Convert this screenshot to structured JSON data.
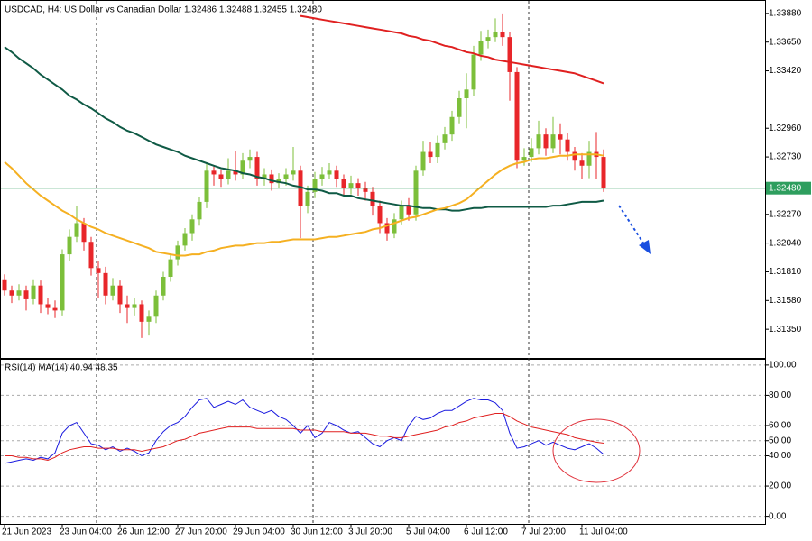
{
  "chart_data": [
    {
      "type": "candlestick",
      "title": "USDCAD, H4:  US Dollar vs Canadian Dollar  1.32486 1.32488 1.32455 1.32480",
      "categories": [
        "21 Jun 2023",
        null,
        null,
        null,
        null,
        null,
        null,
        null,
        "23 Jun 04:00",
        null,
        null,
        null,
        null,
        null,
        null,
        null,
        "26 Jun 12:00",
        null,
        null,
        null,
        null,
        null,
        null,
        null,
        "27 Jun 20:00",
        null,
        null,
        null,
        null,
        null,
        null,
        null,
        "29 Jun 04:00",
        null,
        null,
        null,
        null,
        null,
        null,
        null,
        "30 Jun 12:00",
        null,
        null,
        null,
        null,
        null,
        null,
        null,
        "3 Jul 20:00",
        null,
        null,
        null,
        null,
        null,
        null,
        null,
        "5 Jul 04:00",
        null,
        null,
        null,
        null,
        null,
        null,
        null,
        "6 Jul 12:00",
        null,
        null,
        null,
        null,
        null,
        null,
        null,
        "7 Jul 20:00",
        null,
        null,
        null,
        null,
        null,
        null,
        null,
        "11 Jul 04:00",
        null,
        null,
        null
      ],
      "open": [
        1.3175,
        1.3166,
        1.3162,
        1.3166,
        1.3159,
        1.317,
        1.3155,
        1.3152,
        1.315,
        1.3195,
        1.3209,
        1.322,
        1.3205,
        1.3184,
        1.318,
        1.3162,
        1.317,
        1.3155,
        1.3152,
        1.3155,
        1.3141,
        1.3145,
        1.3162,
        1.3177,
        1.3191,
        1.3202,
        1.3212,
        1.3223,
        1.3237,
        1.3262,
        1.3259,
        1.3255,
        1.3262,
        1.3259,
        1.327,
        1.3273,
        1.3255,
        1.3259,
        1.3252,
        1.3255,
        1.3259,
        1.3262,
        1.3234,
        1.3245,
        1.3255,
        1.3259,
        1.3262,
        1.3255,
        1.3248,
        1.3252,
        1.3248,
        1.3245,
        1.3234,
        1.322,
        1.3212,
        1.3223,
        1.3234,
        1.3227,
        1.3262,
        1.3277,
        1.3273,
        1.3284,
        1.3291,
        1.3305,
        1.332,
        1.3327,
        1.3355,
        1.3366,
        1.3369,
        1.3373,
        1.3369,
        1.3341,
        1.327,
        1.3273,
        1.328,
        1.3291,
        1.328,
        1.3291,
        1.3287,
        1.3277,
        1.327,
        1.3266,
        1.3277,
        1.3273
      ],
      "high": [
        1.3179,
        1.317,
        1.3171,
        1.317,
        1.3175,
        1.3174,
        1.316,
        1.3158,
        1.3199,
        1.3215,
        1.3234,
        1.3224,
        1.3209,
        1.319,
        1.3185,
        1.3176,
        1.3174,
        1.3162,
        1.316,
        1.3158,
        1.315,
        1.3166,
        1.3181,
        1.3195,
        1.3206,
        1.3216,
        1.3227,
        1.3241,
        1.3268,
        1.3266,
        1.3263,
        1.3272,
        1.3278,
        1.3276,
        1.3279,
        1.3277,
        1.3264,
        1.3263,
        1.326,
        1.3264,
        1.3281,
        1.3266,
        1.325,
        1.3261,
        1.3265,
        1.3268,
        1.3266,
        1.3259,
        1.3258,
        1.3256,
        1.3253,
        1.3249,
        1.3238,
        1.3224,
        1.3228,
        1.3238,
        1.324,
        1.3266,
        1.3286,
        1.3285,
        1.329,
        1.3297,
        1.331,
        1.3326,
        1.334,
        1.3362,
        1.3374,
        1.3375,
        1.3384,
        1.3388,
        1.3373,
        1.3345,
        1.328,
        1.3288,
        1.3302,
        1.3296,
        1.3305,
        1.33,
        1.3292,
        1.3281,
        1.3276,
        1.3286,
        1.3293,
        1.3279
      ],
      "low": [
        1.3162,
        1.3156,
        1.3158,
        1.315,
        1.3155,
        1.3148,
        1.3147,
        1.3144,
        1.3146,
        1.319,
        1.3205,
        1.3198,
        1.3178,
        1.316,
        1.3155,
        1.3158,
        1.3148,
        1.314,
        1.3146,
        1.3128,
        1.313,
        1.314,
        1.3158,
        1.3173,
        1.3186,
        1.3198,
        1.3206,
        1.3218,
        1.3232,
        1.325,
        1.3249,
        1.3251,
        1.3254,
        1.3255,
        1.3264,
        1.325,
        1.325,
        1.3246,
        1.3248,
        1.325,
        1.3254,
        1.3208,
        1.3228,
        1.324,
        1.325,
        1.3255,
        1.3249,
        1.3242,
        1.3243,
        1.3242,
        1.3238,
        1.3226,
        1.3212,
        1.3206,
        1.3208,
        1.3219,
        1.3222,
        1.3222,
        1.3258,
        1.3268,
        1.3268,
        1.3279,
        1.3286,
        1.33,
        1.3296,
        1.3322,
        1.335,
        1.336,
        1.3365,
        1.3362,
        1.3318,
        1.3264,
        1.3266,
        1.3269,
        1.3275,
        1.3274,
        1.3276,
        1.3275,
        1.327,
        1.3262,
        1.3255,
        1.3256,
        1.3255,
        1.3245
      ],
      "close": [
        1.3166,
        1.3162,
        1.3166,
        1.3159,
        1.317,
        1.3155,
        1.3152,
        1.315,
        1.3195,
        1.3209,
        1.322,
        1.3205,
        1.3184,
        1.318,
        1.3162,
        1.317,
        1.3155,
        1.3152,
        1.3155,
        1.3141,
        1.3145,
        1.3162,
        1.3177,
        1.3191,
        1.3202,
        1.3212,
        1.3223,
        1.3237,
        1.3262,
        1.3259,
        1.3255,
        1.3262,
        1.3259,
        1.327,
        1.3273,
        1.3255,
        1.3259,
        1.3252,
        1.3255,
        1.3259,
        1.3262,
        1.3234,
        1.3245,
        1.3255,
        1.3259,
        1.3262,
        1.3255,
        1.3248,
        1.3252,
        1.3248,
        1.3245,
        1.3234,
        1.322,
        1.3212,
        1.3223,
        1.3234,
        1.3227,
        1.3262,
        1.3277,
        1.3273,
        1.3284,
        1.3291,
        1.3305,
        1.332,
        1.3327,
        1.3355,
        1.3366,
        1.3369,
        1.3373,
        1.3369,
        1.3341,
        1.327,
        1.3273,
        1.328,
        1.3291,
        1.328,
        1.3291,
        1.3287,
        1.3277,
        1.327,
        1.3266,
        1.3277,
        1.3273,
        1.3248
      ],
      "up_color": "#7cbf3a",
      "down_color": "#e8262a",
      "overlays": [
        {
          "color": "#e02020",
          "values": [
            null,
            null,
            null,
            null,
            null,
            null,
            null,
            null,
            null,
            null,
            null,
            null,
            null,
            null,
            null,
            null,
            null,
            null,
            null,
            null,
            null,
            null,
            null,
            null,
            null,
            null,
            null,
            null,
            null,
            null,
            null,
            null,
            null,
            null,
            null,
            null,
            null,
            null,
            null,
            null,
            null,
            1.3386,
            1.3385,
            1.3384,
            1.3383,
            1.3382,
            1.3381,
            1.338,
            1.3379,
            1.3378,
            1.3377,
            1.3376,
            1.3375,
            1.3374,
            1.3373,
            1.3372,
            1.337,
            1.3369,
            1.3367,
            1.3366,
            1.3364,
            1.3362,
            1.3361,
            1.3359,
            1.3357,
            1.3356,
            1.3354,
            1.3353,
            1.3351,
            1.335,
            1.3349,
            1.3348,
            1.3347,
            1.3346,
            1.3345,
            1.3344,
            1.3343,
            1.3342,
            1.3341,
            1.334,
            1.3338,
            1.3336,
            1.3334,
            1.3332
          ]
        },
        {
          "color": "#0f5a45",
          "values": [
            1.3361,
            1.3357,
            1.3352,
            1.3348,
            1.3344,
            1.3339,
            1.3335,
            1.3331,
            1.3327,
            1.3322,
            1.3319,
            1.3315,
            1.3312,
            1.3308,
            1.3304,
            1.3301,
            1.3297,
            1.3294,
            1.3292,
            1.3289,
            1.3286,
            1.3283,
            1.3281,
            1.3279,
            1.3277,
            1.3274,
            1.3272,
            1.327,
            1.3268,
            1.3266,
            1.3264,
            1.3263,
            1.3262,
            1.326,
            1.3259,
            1.3257,
            1.3256,
            1.3254,
            1.3253,
            1.3252,
            1.325,
            1.3249,
            1.3247,
            1.3247,
            1.3246,
            1.3244,
            1.3244,
            1.3242,
            1.3242,
            1.324,
            1.3239,
            1.3238,
            1.3237,
            1.3236,
            1.3235,
            1.3234,
            1.3234,
            1.3233,
            1.3232,
            1.3232,
            1.3231,
            1.3231,
            1.323,
            1.323,
            1.3231,
            1.3232,
            1.3232,
            1.3233,
            1.3233,
            1.3233,
            1.3233,
            1.3233,
            1.3233,
            1.3233,
            1.3233,
            1.3233,
            1.3234,
            1.3234,
            1.3235,
            1.3236,
            1.3237,
            1.3237,
            1.3237,
            1.3238
          ]
        },
        {
          "color": "#f5b021",
          "values": [
            1.3269,
            1.3264,
            1.3258,
            1.3252,
            1.3247,
            1.3242,
            1.3238,
            1.3234,
            1.323,
            1.3227,
            1.3223,
            1.322,
            1.3217,
            1.3215,
            1.3212,
            1.321,
            1.3208,
            1.3206,
            1.3204,
            1.3202,
            1.32,
            1.3197,
            1.3196,
            1.3195,
            1.3194,
            1.3194,
            1.3195,
            1.3195,
            1.3197,
            1.3198,
            1.32,
            1.3201,
            1.3202,
            1.3202,
            1.3203,
            1.3204,
            1.3204,
            1.3205,
            1.3205,
            1.3206,
            1.3207,
            1.3207,
            1.3207,
            1.3207,
            1.3208,
            1.3209,
            1.3209,
            1.321,
            1.3211,
            1.3212,
            1.3213,
            1.3215,
            1.3216,
            1.3218,
            1.322,
            1.3222,
            1.3224,
            1.3225,
            1.3227,
            1.3229,
            1.3231,
            1.3232,
            1.3234,
            1.3236,
            1.3239,
            1.3244,
            1.3249,
            1.3254,
            1.3259,
            1.3263,
            1.3266,
            1.3268,
            1.3269,
            1.3271,
            1.3272,
            1.3272,
            1.3273,
            1.3274,
            1.3274,
            1.3275,
            1.3275,
            1.3275,
            1.3275,
            1.3274
          ]
        }
      ],
      "current_price": {
        "value": 1.3248,
        "label": "1.32480"
      },
      "ylim": [
        1.3112,
        1.3398
      ],
      "yticks": [
        {
          "value": 1.3388,
          "label": "1.33880"
        },
        {
          "value": 1.3365,
          "label": "1.33650"
        },
        {
          "value": 1.3342,
          "label": "1.33420"
        },
        {
          "value": 1.3296,
          "label": "1.32960"
        },
        {
          "value": 1.3273,
          "label": "1.32730"
        },
        {
          "value": 1.3227,
          "label": "1.32270"
        },
        {
          "value": 1.3204,
          "label": "1.32040"
        },
        {
          "value": 1.3181,
          "label": "1.31810"
        },
        {
          "value": 1.3158,
          "label": "1.31580"
        },
        {
          "value": 1.3135,
          "label": "1.31350"
        }
      ],
      "grid": false
    },
    {
      "type": "line",
      "title": "RSI(14) MA(14) 40.94 48.35",
      "series": [
        {
          "color": "#1a1adf",
          "values": [
            35,
            36,
            37,
            38,
            37,
            39,
            38,
            42,
            55,
            60,
            62,
            55,
            48,
            47,
            44,
            46,
            43,
            45,
            43,
            40,
            42,
            50,
            56,
            60,
            62,
            66,
            72,
            77,
            78,
            72,
            74,
            76,
            74,
            77,
            72,
            70,
            68,
            70,
            66,
            64,
            60,
            55,
            60,
            52,
            55,
            62,
            60,
            57,
            55,
            56,
            52,
            48,
            46,
            50,
            52,
            50,
            60,
            66,
            64,
            65,
            68,
            70,
            70,
            73,
            76,
            78,
            77,
            77,
            75,
            70,
            55,
            45,
            46,
            48,
            50,
            47,
            49,
            47,
            45,
            44,
            46,
            48,
            45,
            40.94
          ]
        },
        {
          "color": "#e02020",
          "values": [
            40,
            40,
            39,
            39,
            38,
            38,
            37,
            39,
            42,
            44,
            45,
            46,
            46,
            45,
            45,
            45,
            44,
            44,
            44,
            43,
            44,
            45,
            46,
            48,
            50,
            51,
            53,
            55,
            56,
            57,
            58,
            59,
            59,
            59,
            59,
            58,
            58,
            58,
            58,
            58,
            58,
            57,
            57,
            57,
            56,
            56,
            56,
            56,
            55,
            55,
            55,
            54,
            53,
            53,
            52,
            52,
            53,
            54,
            55,
            56,
            57,
            59,
            60,
            62,
            63,
            65,
            66,
            67,
            68,
            68,
            66,
            63,
            61,
            59,
            58,
            57,
            56,
            55,
            54,
            52,
            51,
            50,
            49,
            48.35
          ]
        }
      ],
      "ylim": [
        -5,
        103.5
      ],
      "yticks": [
        {
          "value": 100,
          "label": "100.00"
        },
        {
          "value": 80,
          "label": "80.00"
        },
        {
          "value": 60,
          "label": "60.00"
        },
        {
          "value": 50,
          "label": "50.00"
        },
        {
          "value": 40,
          "label": "40.00"
        },
        {
          "value": 20,
          "label": "20.00"
        },
        {
          "value": 0,
          "label": "0.00"
        }
      ],
      "grid": true
    }
  ]
}
